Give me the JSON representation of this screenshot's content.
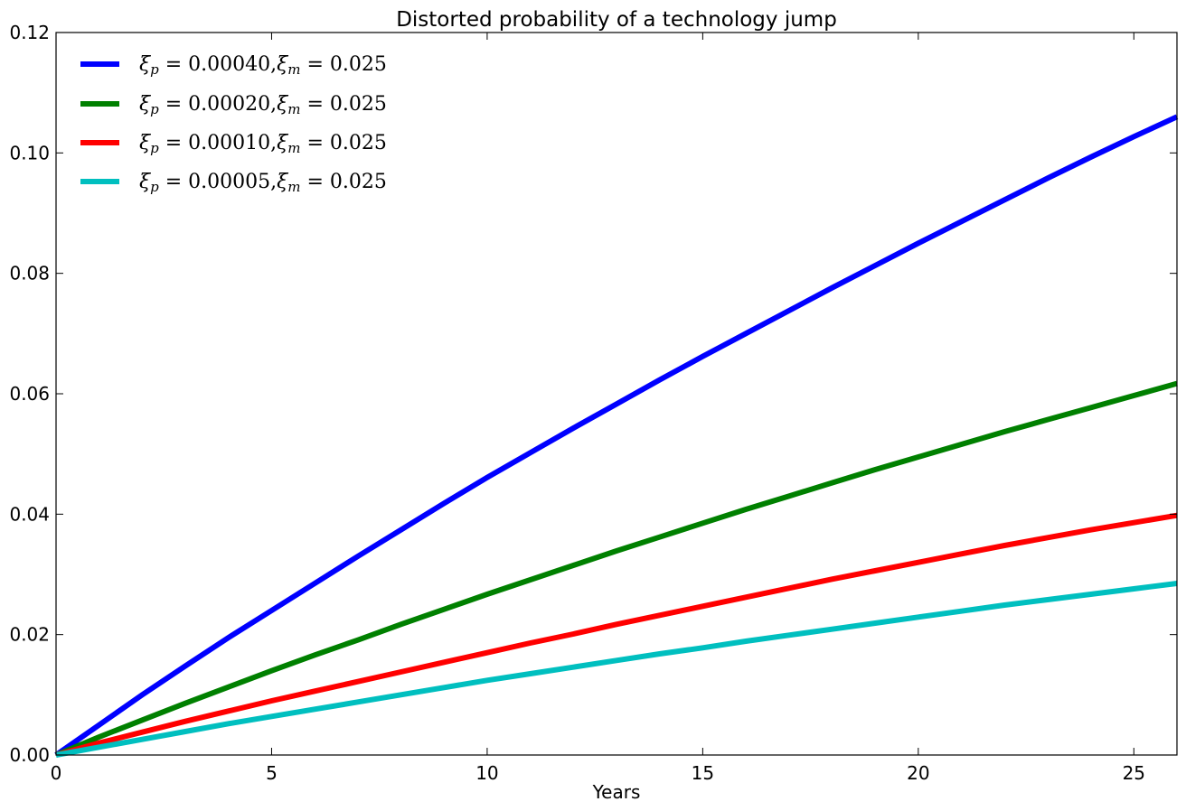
{
  "chart_data": {
    "type": "line",
    "title": "Distorted probability of a technology jump",
    "xlabel": "Years",
    "ylabel": "",
    "xlim": [
      0,
      26
    ],
    "ylim": [
      0,
      0.12
    ],
    "xticks": [
      "0",
      "5",
      "10",
      "15",
      "20",
      "25"
    ],
    "yticks": [
      "0.00",
      "0.02",
      "0.04",
      "0.06",
      "0.08",
      "0.10",
      "0.12"
    ],
    "xtick_values": [
      0,
      5,
      10,
      15,
      20,
      25
    ],
    "ytick_values": [
      0,
      0.02,
      0.04,
      0.06,
      0.08,
      0.1,
      0.12
    ],
    "grid": false,
    "legend_position": "top-left",
    "x": [
      0,
      1,
      2,
      3,
      4,
      5,
      6,
      7,
      8,
      9,
      10,
      11,
      12,
      13,
      14,
      15,
      16,
      17,
      18,
      19,
      20,
      21,
      22,
      23,
      24,
      25,
      26
    ],
    "series": [
      {
        "name": "ξp = 0.00040, ξm = 0.025",
        "color": "#0000ff",
        "values": [
          0.0,
          0.005,
          0.01,
          0.0148,
          0.0195,
          0.024,
          0.0285,
          0.033,
          0.0374,
          0.0418,
          0.0461,
          0.0502,
          0.0543,
          0.0583,
          0.0623,
          0.0662,
          0.07,
          0.0738,
          0.0776,
          0.0813,
          0.085,
          0.0886,
          0.0922,
          0.0958,
          0.0993,
          0.1027,
          0.106
        ]
      },
      {
        "name": "ξp = 0.00020, ξm = 0.025",
        "color": "#008000",
        "values": [
          0.0,
          0.003,
          0.0058,
          0.0086,
          0.0113,
          0.014,
          0.0166,
          0.0191,
          0.0217,
          0.0242,
          0.0267,
          0.0291,
          0.0315,
          0.0339,
          0.0362,
          0.0385,
          0.0408,
          0.043,
          0.0452,
          0.0474,
          0.0495,
          0.0516,
          0.0537,
          0.0557,
          0.0577,
          0.0597,
          0.0617
        ]
      },
      {
        "name": "ξp = 0.00010, ξm = 0.025",
        "color": "#ff0000",
        "values": [
          0.0,
          0.002,
          0.0038,
          0.0056,
          0.0073,
          0.009,
          0.0106,
          0.0122,
          0.0138,
          0.0154,
          0.017,
          0.0186,
          0.0201,
          0.0217,
          0.0232,
          0.0247,
          0.0262,
          0.0277,
          0.0292,
          0.0306,
          0.032,
          0.0334,
          0.0348,
          0.0361,
          0.0374,
          0.0386,
          0.0398
        ]
      },
      {
        "name": "ξp = 0.00005, ξm = 0.025",
        "color": "#00bfbf",
        "values": [
          0.0,
          0.0013,
          0.0026,
          0.0039,
          0.0052,
          0.0064,
          0.0076,
          0.0088,
          0.01,
          0.0112,
          0.0124,
          0.0135,
          0.0146,
          0.0157,
          0.0168,
          0.0178,
          0.0189,
          0.0199,
          0.0209,
          0.0219,
          0.0229,
          0.0239,
          0.0249,
          0.0258,
          0.0267,
          0.0276,
          0.0285
        ]
      }
    ],
    "legend": [
      {
        "prefix": "ξ",
        "sub1": "p",
        "value1": " = 0.00040,",
        "sym2": "ξ",
        "sub2": "m",
        "value2": " = 0.025"
      },
      {
        "prefix": "ξ",
        "sub1": "p",
        "value1": " = 0.00020,",
        "sym2": "ξ",
        "sub2": "m",
        "value2": " = 0.025"
      },
      {
        "prefix": "ξ",
        "sub1": "p",
        "value1": " = 0.00010,",
        "sym2": "ξ",
        "sub2": "m",
        "value2": " = 0.025"
      },
      {
        "prefix": "ξ",
        "sub1": "p",
        "value1": " = 0.00005,",
        "sym2": "ξ",
        "sub2": "m",
        "value2": " = 0.025"
      }
    ]
  }
}
